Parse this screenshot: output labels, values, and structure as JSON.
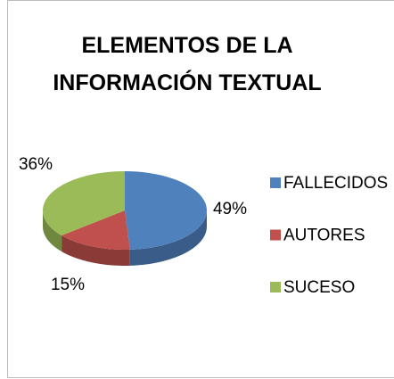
{
  "chart_data": {
    "type": "pie",
    "title": "ELEMENTOS DE LA INFORMACIÓN TEXTUAL",
    "categories": [
      "FALLECIDOS",
      "AUTORES",
      "SUCESO"
    ],
    "values": [
      49,
      15,
      36
    ],
    "value_labels": [
      "49%",
      "15%",
      "36%"
    ],
    "colors": [
      "#4f81bd",
      "#c0504d",
      "#9bbb59"
    ],
    "legend": "right"
  }
}
